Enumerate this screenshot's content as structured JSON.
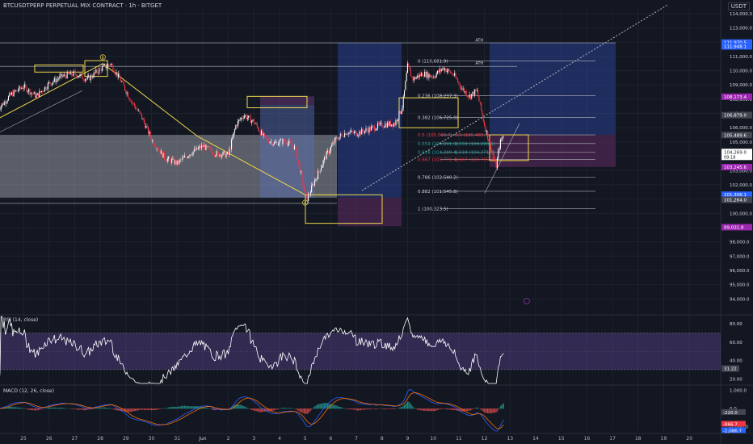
{
  "header": {
    "title": "BTCUSDTPERP PERPETUAL MIX CONTRACT · 1h · BITGET",
    "currency": "USDT"
  },
  "colors": {
    "background": "#131722",
    "grid": "#1e222d",
    "candle_up": "#ffffff",
    "candle_down": "#f23645",
    "rsi_line": "#ffffff",
    "rsi_band": "#7e57c2",
    "macd_line": "#2962ff",
    "signal_line": "#ff6d00",
    "hist_up": "#26a69a",
    "hist_down": "#ef5350",
    "wave_line": "#f0d74a",
    "fib_line": "#b2b5be"
  },
  "chart_data": [
    {
      "type": "candlestick",
      "name": "price",
      "x_ticks": [
        "25",
        "26",
        "27",
        "28",
        "29",
        "30",
        "31",
        "Jun",
        "2",
        "3",
        "4",
        "5",
        "6",
        "7",
        "8",
        "9",
        "10",
        "11",
        "12",
        "13",
        "14",
        "15",
        "16",
        "17",
        "18",
        "19",
        "20"
      ],
      "y_ticks": [
        94000,
        95000,
        96000,
        97000,
        98000,
        99000,
        100000,
        101000,
        102000,
        103000,
        104000,
        105000,
        106000,
        107000,
        108000,
        109000,
        110000,
        111000,
        112000,
        113000,
        114000
      ],
      "y_tick_labels": [
        "94,000.0",
        "95,000.0",
        "96,000.0",
        "97,000.0",
        "98,000.0",
        "99,000.0",
        "100,000.0",
        "101,000.0",
        "102,000.0",
        "103,000.0",
        "104,000.0",
        "105,000.0",
        "106,000.0",
        "107,000.0",
        "108,000.0",
        "109,000.0",
        "110,000.0",
        "111,000.0",
        "112,000.0",
        "113,000.0",
        "114,000.0"
      ],
      "ylim": [
        93000,
        114500
      ],
      "x_range_days": [
        24,
        20.5
      ],
      "path_points": [
        [
          24.0,
          107300
        ],
        [
          24.5,
          108300
        ],
        [
          25.0,
          108900
        ],
        [
          25.5,
          108200
        ],
        [
          26.0,
          109100
        ],
        [
          26.5,
          109600
        ],
        [
          27.0,
          109800
        ],
        [
          27.5,
          109400
        ],
        [
          28.0,
          110100
        ],
        [
          28.4,
          110500
        ],
        [
          28.8,
          109300
        ],
        [
          29.2,
          107900
        ],
        [
          29.6,
          106800
        ],
        [
          30.0,
          105200
        ],
        [
          30.5,
          103900
        ],
        [
          31.0,
          103500
        ],
        [
          31.5,
          104200
        ],
        [
          32.0,
          104700
        ],
        [
          32.5,
          104200
        ],
        [
          33.0,
          104100
        ],
        [
          33.3,
          106200
        ],
        [
          33.6,
          106900
        ],
        [
          34.0,
          106400
        ],
        [
          34.4,
          105300
        ],
        [
          34.8,
          104900
        ],
        [
          35.2,
          105100
        ],
        [
          35.6,
          104600
        ],
        [
          35.9,
          102200
        ],
        [
          36.05,
          100900
        ],
        [
          36.4,
          102400
        ],
        [
          36.8,
          104000
        ],
        [
          37.2,
          105200
        ],
        [
          37.6,
          105700
        ],
        [
          38.0,
          105600
        ],
        [
          38.5,
          105900
        ],
        [
          39.0,
          106200
        ],
        [
          39.5,
          106300
        ],
        [
          39.8,
          107500
        ],
        [
          40.0,
          110300
        ],
        [
          40.2,
          109400
        ],
        [
          40.6,
          109800
        ],
        [
          41.0,
          109600
        ],
        [
          41.4,
          110200
        ],
        [
          41.8,
          109700
        ],
        [
          42.1,
          108800
        ],
        [
          42.4,
          108200
        ],
        [
          42.7,
          108600
        ],
        [
          43.0,
          106200
        ],
        [
          43.3,
          104300
        ],
        [
          43.45,
          103200
        ],
        [
          43.6,
          104900
        ],
        [
          43.75,
          105500
        ]
      ],
      "price_labels": [
        {
          "text": "111,970.5",
          "price": 111970,
          "color": "#2962ff"
        },
        {
          "text": "111,948.1",
          "price": 111700,
          "color": "#2962ff"
        },
        {
          "text": "108,173.4",
          "price": 108173,
          "color": "#9c27b0"
        },
        {
          "text": "106,879.0",
          "price": 106879,
          "color": "#434651"
        },
        {
          "text": "105,489.6",
          "price": 105489,
          "color": "#434651"
        },
        {
          "text": "104,269.0",
          "price": 104300,
          "color": "#ffffff",
          "sub": "09:18"
        },
        {
          "text": "103,245.6",
          "price": 103245,
          "color": "#9c27b0"
        },
        {
          "text": "101,306.1",
          "price": 101306,
          "color": "#2962ff"
        },
        {
          "text": "101,264.0",
          "price": 100950,
          "color": "#434651"
        },
        {
          "text": "99,031.8",
          "price": 99031,
          "color": "#9c27b0"
        }
      ],
      "fib_levels": [
        {
          "ratio": "0",
          "text": "0 (110,681.9)",
          "price": 110681.9
        },
        {
          "ratio": "0.236",
          "text": "0.236 (108,237.3)",
          "price": 108237.3
        },
        {
          "ratio": "0.382",
          "text": "0.382 (106,725.0)",
          "price": 106725.0
        },
        {
          "ratio": "0.5",
          "text": "0.5 (105,500.7)",
          "price": 105500.7
        },
        {
          "ratio": "0.559",
          "text": "0.559 (104,891.3)",
          "price": 104891.3
        },
        {
          "ratio": "0.618",
          "text": "0.618 (104,280.4)",
          "price": 104280.4
        },
        {
          "ratio": "0.667",
          "text": "0.667 (103,772.4)",
          "price": 103772.4
        },
        {
          "ratio": "0.786",
          "text": "0.786 (102,540.2)",
          "price": 102540.2
        },
        {
          "ratio": "0.882",
          "text": "0.882 (101,545.8)",
          "price": 101545.8
        },
        {
          "ratio": "1",
          "text": "1 (100,323.5)",
          "price": 100323.5
        }
      ],
      "fib_labels_right": [
        {
          "text": "0.5 (105,489.3)",
          "price": 105500
        },
        {
          "text": "0.559 (104,880.5)",
          "price": 104891
        },
        {
          "text": "0.618 (104,271.8)",
          "price": 104280
        },
        {
          "text": "0.667 (103,765.3)",
          "price": 103772
        }
      ],
      "annotations": [
        {
          "text": "ATH",
          "day": 42.8,
          "price": 111930
        },
        {
          "text": "ATH",
          "day": 42.8,
          "price": 110300
        },
        {
          "text": "B",
          "day": 28.1,
          "price": 110940
        },
        {
          "text": "C",
          "day": 36.0,
          "price": 100750
        }
      ]
    },
    {
      "type": "line",
      "name": "RSI (14, close)",
      "title": "RSI (14, close)",
      "y_ticks": [
        80.0,
        60.0,
        40.0,
        20.0
      ],
      "y_tick_labels": [
        "80.00",
        "60.00",
        "40.00",
        "20.00"
      ],
      "ylim": [
        15,
        88
      ],
      "band": [
        30,
        70
      ],
      "current_value": "31.22"
    },
    {
      "type": "line",
      "name": "MACD (12, 26, close)",
      "title": "MACD (12, 26, close)",
      "y_ticks": [
        1000,
        0,
        -1000
      ],
      "y_tick_labels": [
        "1,000.0",
        "0.0",
        "-1,000.0"
      ],
      "ylim": [
        -1250,
        1250
      ],
      "value_labels": [
        "-220.0",
        "-866.7",
        "-1,086.7"
      ]
    }
  ]
}
